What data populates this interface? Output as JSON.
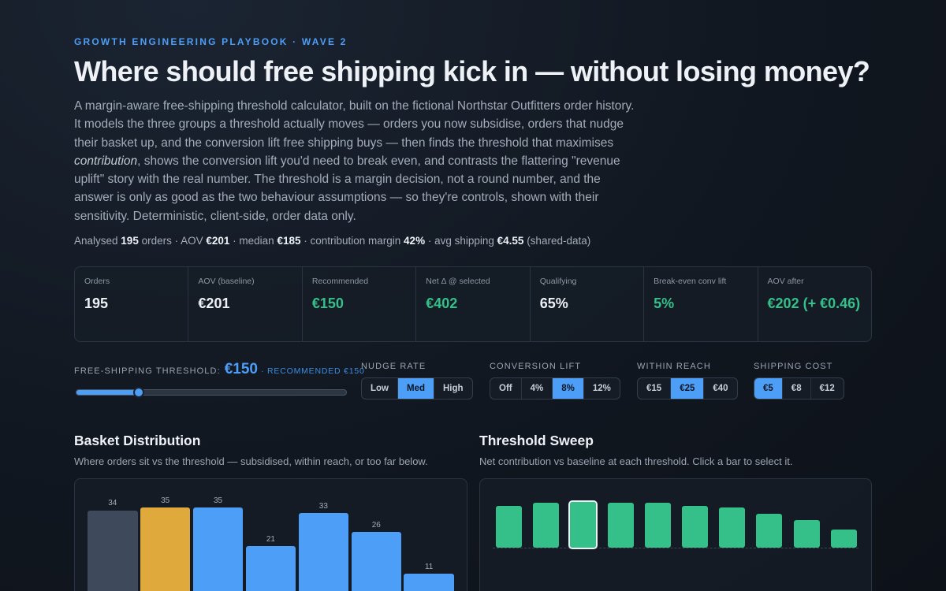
{
  "header": {
    "eyebrow": "GROWTH ENGINEERING PLAYBOOK · WAVE 2",
    "title": "Where should free shipping kick in — without losing money?",
    "intro_a": "A margin-aware free-shipping threshold calculator, built on the fictional Northstar Outfitters order history. It models the three groups a threshold actually moves — orders you now subsidise, orders that nudge their basket up, and the conversion lift free shipping buys — then finds the threshold that maximises ",
    "intro_em": "contribution",
    "intro_b": ", shows the conversion lift you'd need to break even, and contrasts the flattering \"revenue uplift\" story with the real number. The threshold is a margin decision, not a round number, and the answer is only as good as the two behaviour assumptions — so they're controls, shown with their sensitivity. Deterministic, client-side, order data only."
  },
  "stats": {
    "t1": "Analysed ",
    "orders": "195",
    "t2": " orders · AOV ",
    "aov": "€201",
    "t3": " · median ",
    "median": "€185",
    "t4": " · contribution margin ",
    "margin": "42%",
    "t5": " · avg shipping ",
    "shipping": "€4.55",
    "t6": " (shared-data)"
  },
  "kpis": [
    {
      "label": "Orders",
      "value": "195",
      "green": false
    },
    {
      "label": "AOV (baseline)",
      "value": "€201",
      "green": false
    },
    {
      "label": "Recommended",
      "value": "€150",
      "green": true
    },
    {
      "label": "Net Δ @ selected",
      "value": "€402",
      "green": true
    },
    {
      "label": "Qualifying",
      "value": "65%",
      "green": false
    },
    {
      "label": "Break-even conv lift",
      "value": "5%",
      "green": true
    },
    {
      "label": "AOV after",
      "value": "€202 (+ €0.46)",
      "green": true
    }
  ],
  "controls": {
    "threshold": {
      "label": "FREE-SHIPPING THRESHOLD:",
      "value": "€150",
      "recommended": "· RECOMMENDED €150",
      "position": 0.23
    },
    "nudge": {
      "label": "NUDGE RATE",
      "options": [
        "Low",
        "Med",
        "High"
      ],
      "active": 1
    },
    "conversion": {
      "label": "CONVERSION LIFT",
      "options": [
        "Off",
        "4%",
        "8%",
        "12%"
      ],
      "active": 2
    },
    "reach": {
      "label": "WITHIN REACH",
      "options": [
        "€15",
        "€25",
        "€40"
      ],
      "active": 1
    },
    "shipping": {
      "label": "SHIPPING COST",
      "options": [
        "€5",
        "€8",
        "€12"
      ],
      "active": 0
    }
  },
  "distribution": {
    "title": "Basket Distribution",
    "subtitle": "Where orders sit vs the threshold — subsidised, within reach, or too far below.",
    "bins": [
      {
        "count": 34,
        "group": "too-far"
      },
      {
        "count": 35,
        "group": "within-reach"
      },
      {
        "count": 35,
        "group": "subsidised"
      },
      {
        "count": 21,
        "group": "subsidised"
      },
      {
        "count": 33,
        "group": "subsidised"
      },
      {
        "count": 26,
        "group": "subsidised"
      },
      {
        "count": 11,
        "group": "subsidised"
      }
    ],
    "colors": {
      "too-far": "#3e4a5c",
      "within-reach": "#e0a93b",
      "subsidised": "#4d9ef7"
    }
  },
  "sweep": {
    "title": "Threshold Sweep",
    "subtitle": "Net contribution vs baseline at each threshold. Click a bar to select it.",
    "values": [
      370,
      392,
      402,
      392,
      392,
      370,
      356,
      300,
      240,
      162
    ],
    "selected": 2,
    "color": "#35c08a"
  }
}
